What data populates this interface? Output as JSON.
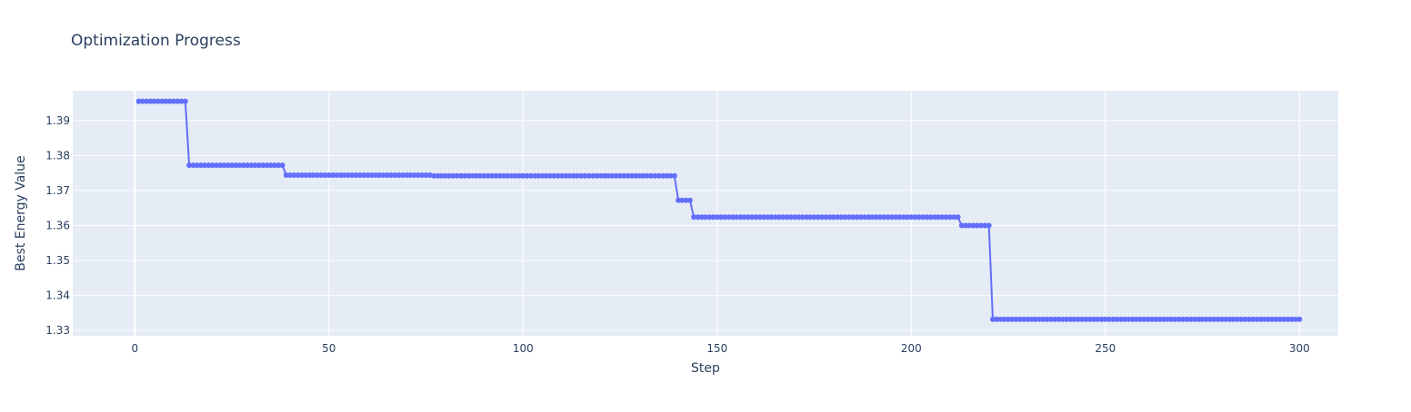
{
  "chart_data": {
    "type": "line",
    "title": "Optimization Progress",
    "xlabel": "Step",
    "ylabel": "Best Energy Value",
    "xlim": [
      -16,
      310
    ],
    "ylim": [
      1.3285,
      1.3985
    ],
    "x_ticks": [
      0,
      50,
      100,
      150,
      200,
      250,
      300
    ],
    "y_ticks": [
      1.33,
      1.34,
      1.35,
      1.36,
      1.37,
      1.38,
      1.39
    ],
    "grid": true,
    "legend": "none",
    "colors": {
      "line": "#636efa",
      "plot_bg": "#e5ecf6",
      "grid": "#ffffff",
      "text": "#2a3f5f"
    },
    "segments": [
      {
        "x_start": 1,
        "x_end": 13,
        "y": 1.3955
      },
      {
        "x_start": 14,
        "x_end": 38,
        "y": 1.3772
      },
      {
        "x_start": 39,
        "x_end": 76,
        "y": 1.3744
      },
      {
        "x_start": 77,
        "x_end": 139,
        "y": 1.3742
      },
      {
        "x_start": 140,
        "x_end": 143,
        "y": 1.3672
      },
      {
        "x_start": 144,
        "x_end": 212,
        "y": 1.3624
      },
      {
        "x_start": 213,
        "x_end": 220,
        "y": 1.36
      },
      {
        "x_start": 221,
        "x_end": 300,
        "y": 1.3332
      }
    ]
  }
}
